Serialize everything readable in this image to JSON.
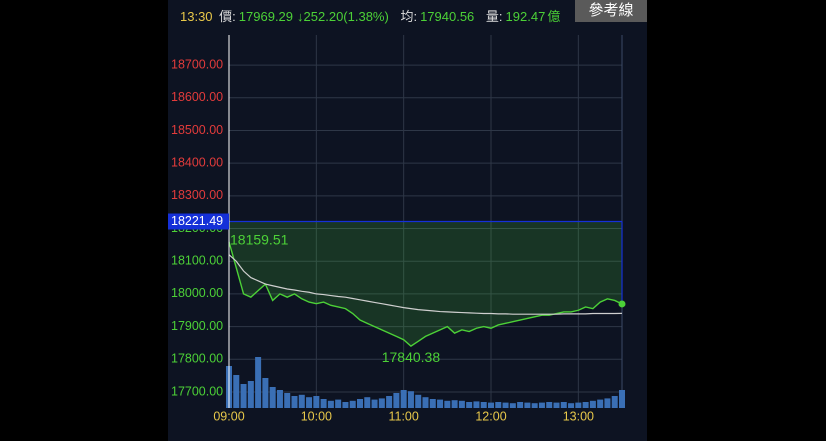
{
  "header": {
    "time": "13:30",
    "price_label": "價:",
    "price": "17969.29",
    "change": "↓252.20(1.38%)",
    "avg_label": "均:",
    "avg": "17940.56",
    "volume_label": "量:",
    "volume": "192.47",
    "volume_unit": "億",
    "button": "參考線"
  },
  "chart_data": {
    "type": "line",
    "x": [
      0,
      5,
      10,
      15,
      20,
      25,
      30,
      35,
      40,
      45,
      50,
      55,
      60,
      65,
      70,
      75,
      80,
      85,
      90,
      95,
      100,
      105,
      110,
      115,
      120,
      125,
      130,
      135,
      140,
      145,
      150,
      155,
      160,
      165,
      170,
      175,
      180,
      185,
      190,
      195,
      200,
      205,
      210,
      215,
      220,
      225,
      230,
      235,
      240,
      245,
      250,
      255,
      260,
      265,
      270
    ],
    "xlim": [
      0,
      270
    ],
    "xticks": [
      {
        "value": 0,
        "label": "09:00"
      },
      {
        "value": 60,
        "label": "10:00"
      },
      {
        "value": 120,
        "label": "11:00"
      },
      {
        "value": 180,
        "label": "12:00"
      },
      {
        "value": 240,
        "label": "13:00"
      }
    ],
    "ylim": [
      17651,
      18792
    ],
    "yticks": [
      {
        "value": 17700,
        "label": "17700.00"
      },
      {
        "value": 17800,
        "label": "17800.00"
      },
      {
        "value": 17900,
        "label": "17900.00"
      },
      {
        "value": 18000,
        "label": "18000.00"
      },
      {
        "value": 18100,
        "label": "18100.00"
      },
      {
        "value": 18200,
        "label": "18200.00"
      },
      {
        "value": 18300,
        "label": "18300.00"
      },
      {
        "value": 18400,
        "label": "18400.00"
      },
      {
        "value": 18500,
        "label": "18500.00"
      },
      {
        "value": 18600,
        "label": "18600.00"
      },
      {
        "value": 18700,
        "label": "18700.00"
      }
    ],
    "grid": true,
    "up_color": "#e23b3b",
    "down_color": "#4cd137",
    "reference": {
      "value": 18221.49,
      "color": "#1530d8"
    },
    "series": [
      {
        "color": "#4cd137",
        "values": [
          18159.51,
          18080,
          18000,
          17990,
          18010,
          18030,
          17980,
          18000,
          17990,
          18000,
          17985,
          17975,
          17970,
          17975,
          17965,
          17960,
          17955,
          17940,
          17920,
          17910,
          17900,
          17890,
          17880,
          17870,
          17860,
          17840.38,
          17855,
          17870,
          17880,
          17890,
          17900,
          17880,
          17890,
          17885,
          17895,
          17900,
          17895,
          17905,
          17910,
          17915,
          17920,
          17925,
          17930,
          17935,
          17935,
          17940,
          17945,
          17945,
          17950,
          17960,
          17955,
          17975,
          17985,
          17980,
          17969.29
        ]
      },
      {
        "color": "#cfcfcf",
        "values": [
          18120,
          18100,
          18070,
          18050,
          18040,
          18030,
          18025,
          18020,
          18015,
          18012,
          18008,
          18005,
          18000,
          17998,
          17995,
          17992,
          17990,
          17986,
          17982,
          17978,
          17974,
          17970,
          17966,
          17962,
          17958,
          17955,
          17952,
          17950,
          17948,
          17946,
          17945,
          17944,
          17943,
          17942,
          17941,
          17940,
          17940,
          17939,
          17939,
          17938,
          17938,
          17938,
          17938,
          17938,
          17938,
          17938,
          17939,
          17939,
          17939,
          17939,
          17940,
          17940,
          17940,
          17940,
          17940.56
        ]
      }
    ],
    "annotations": [
      {
        "x": 0,
        "value": 18159.51
      },
      {
        "x": 125,
        "value": 17840.38
      }
    ],
    "volume": {
      "color": "#3a6fb5",
      "vlim": [
        0,
        100
      ],
      "values": [
        70,
        55,
        40,
        45,
        85,
        50,
        35,
        30,
        25,
        20,
        22,
        18,
        20,
        15,
        12,
        14,
        10,
        12,
        15,
        18,
        14,
        16,
        20,
        25,
        30,
        28,
        22,
        18,
        15,
        14,
        12,
        13,
        12,
        10,
        11,
        10,
        9,
        10,
        9,
        8,
        10,
        9,
        8,
        9,
        10,
        9,
        10,
        8,
        9,
        10,
        12,
        14,
        16,
        20,
        30
      ]
    }
  }
}
